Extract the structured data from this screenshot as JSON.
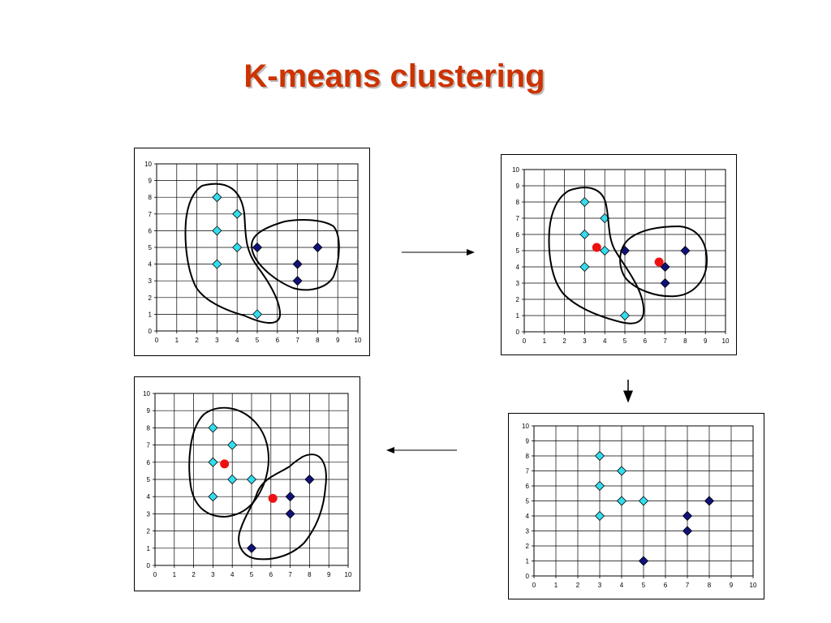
{
  "slide": {
    "title": "K-means clustering"
  },
  "colors": {
    "title": "#cc3300",
    "light_point": "#33ddee",
    "dark_point": "#10127a",
    "centroid": "#ee1111"
  },
  "chart_data": [
    {
      "type": "scatter",
      "id": "step-1",
      "xlim": [
        0,
        10
      ],
      "ylim": [
        0,
        10
      ],
      "xticks": [
        "0",
        "1",
        "2",
        "3",
        "4",
        "5",
        "6",
        "7",
        "8",
        "9",
        "10"
      ],
      "yticks": [
        "0",
        "1",
        "2",
        "3",
        "4",
        "5",
        "6",
        "7",
        "8",
        "9",
        "10"
      ],
      "grid": true,
      "series": [
        {
          "marker": "diamond",
          "color": "light",
          "points": [
            [
              3,
              8
            ],
            [
              4,
              7
            ],
            [
              3,
              6
            ],
            [
              4,
              5
            ],
            [
              3,
              4
            ],
            [
              5,
              1
            ]
          ]
        },
        {
          "marker": "diamond",
          "color": "dark",
          "points": [
            [
              5,
              5
            ],
            [
              8,
              5
            ],
            [
              7,
              4
            ],
            [
              7,
              3
            ]
          ]
        }
      ],
      "centroids": [],
      "cluster_outlines": 2
    },
    {
      "type": "scatter",
      "id": "step-2",
      "xlim": [
        0,
        10
      ],
      "ylim": [
        0,
        10
      ],
      "xticks": [
        "0",
        "1",
        "2",
        "3",
        "4",
        "5",
        "6",
        "7",
        "8",
        "9",
        "10"
      ],
      "yticks": [
        "0",
        "1",
        "2",
        "3",
        "4",
        "5",
        "6",
        "7",
        "8",
        "9",
        "10"
      ],
      "grid": true,
      "series": [
        {
          "marker": "diamond",
          "color": "light",
          "points": [
            [
              3,
              8
            ],
            [
              4,
              7
            ],
            [
              3,
              6
            ],
            [
              4,
              5
            ],
            [
              3,
              4
            ],
            [
              5,
              1
            ]
          ]
        },
        {
          "marker": "diamond",
          "color": "dark",
          "points": [
            [
              5,
              5
            ],
            [
              8,
              5
            ],
            [
              7,
              4
            ],
            [
              7,
              3
            ]
          ]
        }
      ],
      "centroids": [
        [
          3.6,
          5.2
        ],
        [
          6.7,
          4.3
        ]
      ],
      "cluster_outlines": 2
    },
    {
      "type": "scatter",
      "id": "step-3",
      "xlim": [
        0,
        10
      ],
      "ylim": [
        0,
        10
      ],
      "xticks": [
        "0",
        "1",
        "2",
        "3",
        "4",
        "5",
        "6",
        "7",
        "8",
        "9",
        "10"
      ],
      "yticks": [
        "0",
        "1",
        "2",
        "3",
        "4",
        "5",
        "6",
        "7",
        "8",
        "9",
        "10"
      ],
      "grid": true,
      "series": [
        {
          "marker": "diamond",
          "color": "light",
          "points": [
            [
              3,
              8
            ],
            [
              4,
              7
            ],
            [
              3,
              6
            ],
            [
              4,
              5
            ],
            [
              5,
              5
            ],
            [
              3,
              4
            ]
          ]
        },
        {
          "marker": "diamond",
          "color": "dark",
          "points": [
            [
              8,
              5
            ],
            [
              7,
              4
            ],
            [
              7,
              3
            ],
            [
              5,
              1
            ]
          ]
        }
      ],
      "centroids": [],
      "cluster_outlines": 0
    },
    {
      "type": "scatter",
      "id": "step-4",
      "xlim": [
        0,
        10
      ],
      "ylim": [
        0,
        10
      ],
      "xticks": [
        "0",
        "1",
        "2",
        "3",
        "4",
        "5",
        "6",
        "7",
        "8",
        "9",
        "10"
      ],
      "yticks": [
        "0",
        "1",
        "2",
        "3",
        "4",
        "5",
        "6",
        "7",
        "8",
        "9",
        "10"
      ],
      "grid": true,
      "series": [
        {
          "marker": "diamond",
          "color": "light",
          "points": [
            [
              3,
              8
            ],
            [
              4,
              7
            ],
            [
              3,
              6
            ],
            [
              4,
              5
            ],
            [
              5,
              5
            ],
            [
              3,
              4
            ]
          ]
        },
        {
          "marker": "diamond",
          "color": "dark",
          "points": [
            [
              8,
              5
            ],
            [
              7,
              4
            ],
            [
              7,
              3
            ],
            [
              5,
              1
            ]
          ]
        }
      ],
      "centroids": [
        [
          3.6,
          5.9
        ],
        [
          6.1,
          3.9
        ]
      ],
      "cluster_outlines": 2
    }
  ]
}
